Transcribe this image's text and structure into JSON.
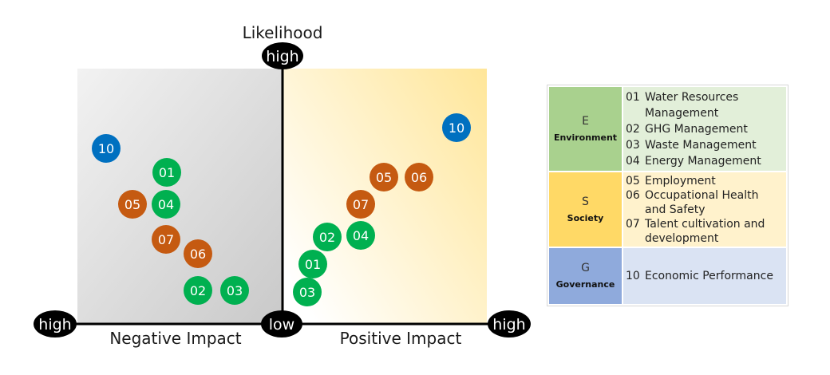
{
  "axes": {
    "y_title": "Likelihood",
    "y_top_label": "high",
    "origin_label": "low",
    "x_left_label": "high",
    "x_right_label": "high",
    "negative_title": "Negative Impact",
    "positive_title": "Positive Impact"
  },
  "colors": {
    "environment": "#00b050",
    "society": "#c55a11",
    "governance": "#0070c0",
    "negative_quadrant_start": "#f2f2f2",
    "negative_quadrant_end": "#c9c9c9",
    "positive_quadrant_start": "#ffffff",
    "positive_quadrant_end": "#ffe699",
    "axis": "#000000"
  },
  "points": {
    "negative": [
      {
        "label": "10",
        "category": "governance"
      },
      {
        "label": "01",
        "category": "environment"
      },
      {
        "label": "05",
        "category": "society"
      },
      {
        "label": "04",
        "category": "environment"
      },
      {
        "label": "07",
        "category": "society"
      },
      {
        "label": "06",
        "category": "society"
      },
      {
        "label": "02",
        "category": "environment"
      },
      {
        "label": "03",
        "category": "environment"
      }
    ],
    "positive": [
      {
        "label": "10",
        "category": "governance"
      },
      {
        "label": "05",
        "category": "society"
      },
      {
        "label": "06",
        "category": "society"
      },
      {
        "label": "07",
        "category": "society"
      },
      {
        "label": "02",
        "category": "environment"
      },
      {
        "label": "04",
        "category": "environment"
      },
      {
        "label": "01",
        "category": "environment"
      },
      {
        "label": "03",
        "category": "environment"
      }
    ]
  },
  "legend": {
    "environment": {
      "letter": "E",
      "name": "Environment",
      "items": [
        {
          "num": "01",
          "text": "Water Resources",
          "cont": "Management"
        },
        {
          "num": "02",
          "text": "GHG Management"
        },
        {
          "num": "03",
          "text": "Waste Management"
        },
        {
          "num": "04",
          "text": "Energy Management"
        }
      ]
    },
    "society": {
      "letter": "S",
      "name": "Society",
      "items": [
        {
          "num": "05",
          "text": "Employment"
        },
        {
          "num": "06",
          "text": "Occupational Health",
          "cont": "and Safety"
        },
        {
          "num": "07",
          "text": "Talent cultivation and",
          "cont": "development"
        }
      ]
    },
    "governance": {
      "letter": "G",
      "name": "Governance",
      "items": [
        {
          "num": "10",
          "text": "Economic Performance"
        }
      ]
    }
  }
}
